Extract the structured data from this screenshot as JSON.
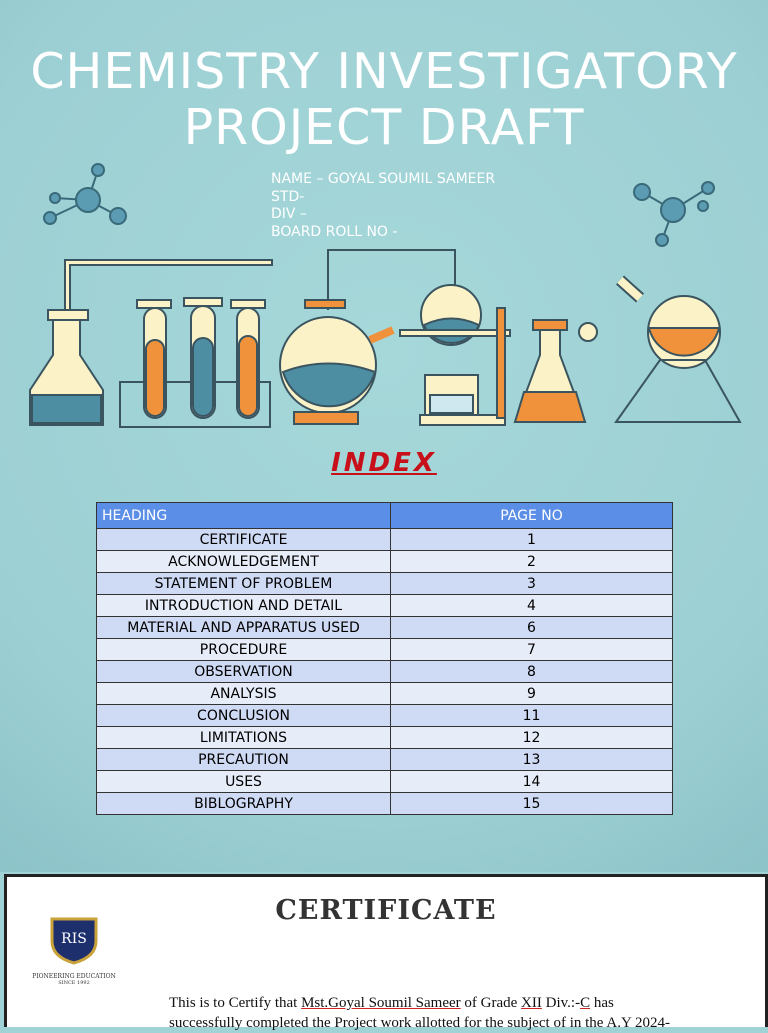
{
  "cover": {
    "title": "CHEMISTRY INVESTIGATORY PROJECT DRAFT",
    "info": [
      "NAME – GOYAL SOUMIL SAMEER",
      "STD-",
      "DIV –",
      "BOARD ROLL NO -"
    ]
  },
  "index": {
    "title": "INDEX",
    "header": [
      "HEADING",
      "PAGE NO"
    ],
    "rows": [
      [
        "CERTIFICATE",
        1
      ],
      [
        "ACKNOWLEDGEMENT",
        2
      ],
      [
        "STATEMENT OF PROBLEM",
        3
      ],
      [
        "INTRODUCTION AND DETAIL",
        4
      ],
      [
        "MATERIAL AND APPARATUS USED",
        6
      ],
      [
        "PROCEDURE",
        7
      ],
      [
        "OBSERVATION",
        8
      ],
      [
        "ANALYSIS",
        9
      ],
      [
        "CONCLUSION",
        11
      ],
      [
        "LIMITATIONS",
        12
      ],
      [
        "PRECAUTION",
        13
      ],
      [
        "USES",
        14
      ],
      [
        "BIBLOGRAPHY",
        15
      ]
    ]
  },
  "certificate": {
    "title": "CERTIFICATE",
    "logo": {
      "initials": "RIS",
      "motto": "PIONEERING EDUCATION",
      "since": "SINCE 1992"
    },
    "body": {
      "p1": "This is to Certify that",
      "student": "Mst.Goyal Soumil Sameer",
      "p2": "of Grade",
      "grade": "XII",
      "p3": "Div.:-",
      "div": "C",
      "p4": "has",
      "line2": "successfully completed the Project work allotted for the subject of in the A.Y 2024-"
    }
  }
}
